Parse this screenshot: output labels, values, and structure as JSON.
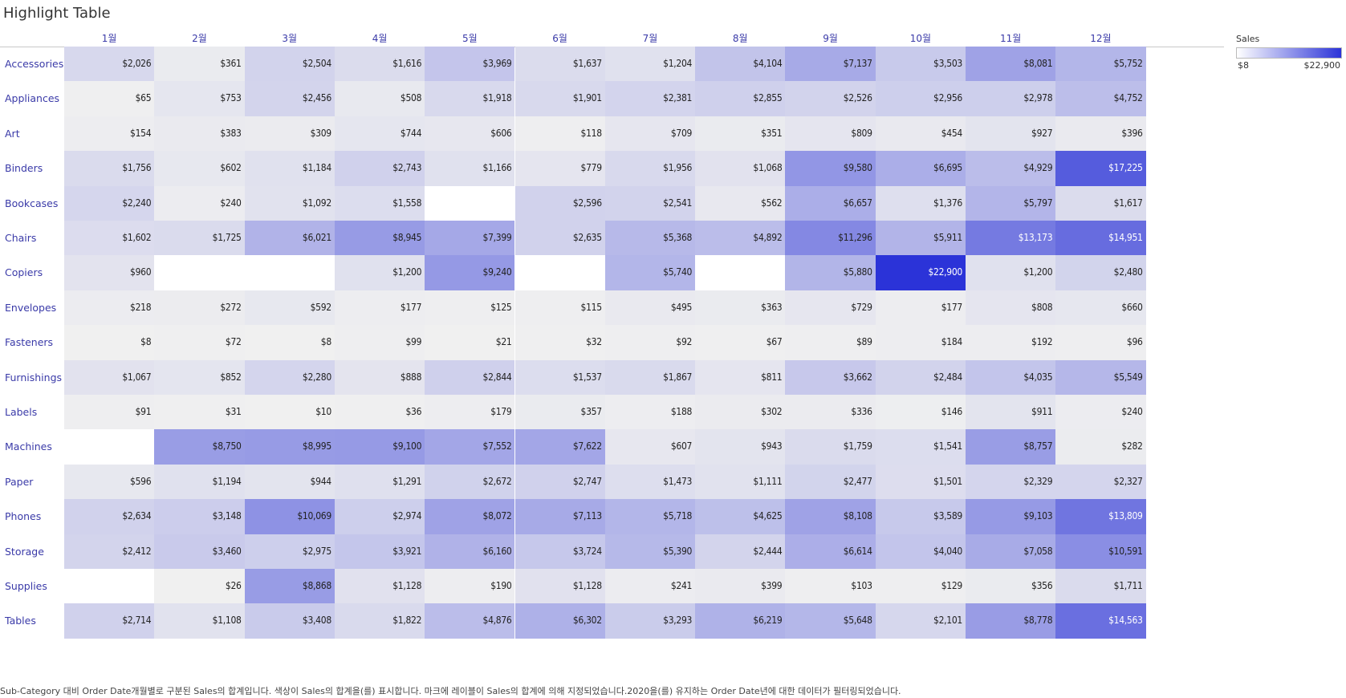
{
  "title": "Highlight Table",
  "caption": "Sub-Category 대비 Order Date개월별로 구분된 Sales의 합계입니다. 색상이 Sales의 합계을(를) 표시합니다. 마크에 레이블이 Sales의 합계에 의해 지정되었습니다.2020을(를) 유지하는 Order Date년에 대한 데이터가 필터링되었습니다.",
  "legend": {
    "title": "Sales",
    "min_label": "$8",
    "max_label": "$22,900"
  },
  "colors": {
    "low": "#ffffff",
    "high": "#2b33d8",
    "grey_low": "#f0f0f0",
    "label": "#3a3aa8"
  },
  "chart_data": {
    "type": "heatmap",
    "title": "Highlight Table",
    "color_measure": "Sales",
    "color_range": [
      8,
      22900
    ],
    "columns": [
      "1월",
      "2월",
      "3월",
      "4월",
      "5월",
      "6월",
      "7월",
      "8월",
      "9월",
      "10월",
      "11월",
      "12월"
    ],
    "rows": [
      "Accessories",
      "Appliances",
      "Art",
      "Binders",
      "Bookcases",
      "Chairs",
      "Copiers",
      "Envelopes",
      "Fasteners",
      "Furnishings",
      "Labels",
      "Machines",
      "Paper",
      "Phones",
      "Storage",
      "Supplies",
      "Tables"
    ],
    "values": [
      [
        2026,
        361,
        2504,
        1616,
        3969,
        1637,
        1204,
        4104,
        7137,
        3503,
        8081,
        5752
      ],
      [
        65,
        753,
        2456,
        508,
        1918,
        1901,
        2381,
        2855,
        2526,
        2956,
        2978,
        4752
      ],
      [
        154,
        383,
        309,
        744,
        606,
        118,
        709,
        351,
        809,
        454,
        927,
        396
      ],
      [
        1756,
        602,
        1184,
        2743,
        1166,
        779,
        1956,
        1068,
        9580,
        6695,
        4929,
        17225
      ],
      [
        2240,
        240,
        1092,
        1558,
        null,
        2596,
        2541,
        562,
        6657,
        1376,
        5797,
        1617
      ],
      [
        1602,
        1725,
        6021,
        8945,
        7399,
        2635,
        5368,
        4892,
        11296,
        5911,
        13173,
        14951
      ],
      [
        960,
        null,
        null,
        1200,
        9240,
        null,
        5740,
        null,
        5880,
        22900,
        1200,
        2480
      ],
      [
        218,
        272,
        592,
        177,
        125,
        115,
        495,
        363,
        729,
        177,
        808,
        660
      ],
      [
        8,
        72,
        8,
        99,
        21,
        32,
        92,
        67,
        89,
        184,
        192,
        96
      ],
      [
        1067,
        852,
        2280,
        888,
        2844,
        1537,
        1867,
        811,
        3662,
        2484,
        4035,
        5549
      ],
      [
        91,
        31,
        10,
        36,
        179,
        357,
        188,
        302,
        336,
        146,
        911,
        240
      ],
      [
        null,
        8750,
        8995,
        9100,
        7552,
        7622,
        607,
        943,
        1759,
        1541,
        8757,
        282
      ],
      [
        596,
        1194,
        944,
        1291,
        2672,
        2747,
        1473,
        1111,
        2477,
        1501,
        2329,
        2327
      ],
      [
        2634,
        3148,
        10069,
        2974,
        8072,
        7113,
        5718,
        4625,
        8108,
        3589,
        9103,
        13809
      ],
      [
        2412,
        3460,
        2975,
        3921,
        6160,
        3724,
        5390,
        2444,
        6614,
        4040,
        7058,
        10591
      ],
      [
        null,
        26,
        8868,
        1128,
        190,
        1128,
        241,
        399,
        103,
        129,
        356,
        1711
      ],
      [
        2714,
        1108,
        3408,
        1822,
        4876,
        6302,
        3293,
        6219,
        5648,
        2101,
        8778,
        14563
      ]
    ]
  }
}
